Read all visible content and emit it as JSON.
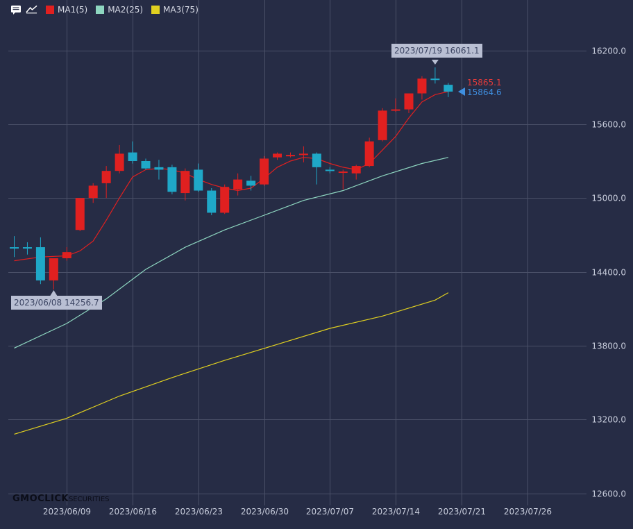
{
  "legend": {
    "menu_icon": "chat-bubble-icon",
    "draw_icon": "drawing-tool-icon",
    "items": [
      {
        "label": "MA1(5)",
        "color": "#e02020"
      },
      {
        "label": "MA2(25)",
        "color": "#8ed6c0"
      },
      {
        "label": "MA3(75)",
        "color": "#e0d020"
      }
    ]
  },
  "callouts": {
    "high": "2023/07/19 16061.1",
    "low": "2023/06/08 14256.7"
  },
  "last_price": {
    "ma": "15865.1",
    "close": "15864.6"
  },
  "logo": {
    "main": "GMOCLICK",
    "sub": "SECURITIES"
  },
  "colors": {
    "background": "#262c45",
    "grid": "#4a5068",
    "up": "#e02020",
    "down": "#1fa8c8",
    "ma1": "#e02020",
    "ma2": "#8ed6c0",
    "ma3": "#e0d020",
    "axis_text": "#c9cedd"
  },
  "chart_data": {
    "type": "candlestick",
    "y_ticks": [
      12600.0,
      13200.0,
      13800.0,
      14400.0,
      15000.0,
      15600.0,
      16200.0
    ],
    "y_tick_labels": [
      "12600.0",
      "13200.0",
      "13800.0",
      "14400.0",
      "15000.0",
      "15600.0",
      "16200.0"
    ],
    "ylim": [
      12440,
      16560
    ],
    "x_ticks": [
      "2023/06/09",
      "2023/06/16",
      "2023/06/23",
      "2023/06/30",
      "2023/07/07",
      "2023/07/14",
      "2023/07/21",
      "2023/07/26"
    ],
    "x_tick_slots": [
      4,
      9,
      14,
      19,
      24,
      29,
      34,
      39
    ],
    "candles": [
      {
        "slot": 0,
        "open": 14600,
        "high": 14690,
        "low": 14520,
        "close": 14590
      },
      {
        "slot": 1,
        "open": 14600,
        "high": 14640,
        "low": 14540,
        "close": 14590
      },
      {
        "slot": 2,
        "open": 14600,
        "high": 14680,
        "low": 14300,
        "close": 14330
      },
      {
        "slot": 3,
        "open": 14330,
        "high": 14510,
        "low": 14256.7,
        "close": 14510
      },
      {
        "slot": 4,
        "open": 14510,
        "high": 14600,
        "low": 14490,
        "close": 14560
      },
      {
        "slot": 5,
        "open": 14740,
        "high": 15000,
        "low": 14730,
        "close": 15000
      },
      {
        "slot": 6,
        "open": 15000,
        "high": 15120,
        "low": 14960,
        "close": 15100
      },
      {
        "slot": 7,
        "open": 15120,
        "high": 15260,
        "low": 15000,
        "close": 15220
      },
      {
        "slot": 8,
        "open": 15220,
        "high": 15430,
        "low": 15200,
        "close": 15360
      },
      {
        "slot": 9,
        "open": 15370,
        "high": 15460,
        "low": 15280,
        "close": 15300
      },
      {
        "slot": 10,
        "open": 15300,
        "high": 15320,
        "low": 15230,
        "close": 15240
      },
      {
        "slot": 11,
        "open": 15250,
        "high": 15310,
        "low": 15150,
        "close": 15230
      },
      {
        "slot": 12,
        "open": 15250,
        "high": 15270,
        "low": 15030,
        "close": 15050
      },
      {
        "slot": 13,
        "open": 15040,
        "high": 15240,
        "low": 14980,
        "close": 15220
      },
      {
        "slot": 14,
        "open": 15230,
        "high": 15280,
        "low": 15050,
        "close": 15060
      },
      {
        "slot": 15,
        "open": 15060,
        "high": 15080,
        "low": 14860,
        "close": 14880
      },
      {
        "slot": 16,
        "open": 14880,
        "high": 15110,
        "low": 14870,
        "close": 15090
      },
      {
        "slot": 17,
        "open": 15070,
        "high": 15200,
        "low": 15020,
        "close": 15150
      },
      {
        "slot": 18,
        "open": 15140,
        "high": 15180,
        "low": 15060,
        "close": 15100
      },
      {
        "slot": 19,
        "open": 15110,
        "high": 15340,
        "low": 15100,
        "close": 15320
      },
      {
        "slot": 20,
        "open": 15330,
        "high": 15370,
        "low": 15310,
        "close": 15360
      },
      {
        "slot": 21,
        "open": 15350,
        "high": 15370,
        "low": 15330,
        "close": 15350
      },
      {
        "slot": 22,
        "open": 15350,
        "high": 15420,
        "low": 15290,
        "close": 15360
      },
      {
        "slot": 23,
        "open": 15360,
        "high": 15370,
        "low": 15110,
        "close": 15250
      },
      {
        "slot": 24,
        "open": 15230,
        "high": 15250,
        "low": 15200,
        "close": 15220
      },
      {
        "slot": 25,
        "open": 15210,
        "high": 15230,
        "low": 15070,
        "close": 15215
      },
      {
        "slot": 26,
        "open": 15200,
        "high": 15270,
        "low": 15150,
        "close": 15260
      },
      {
        "slot": 27,
        "open": 15260,
        "high": 15490,
        "low": 15250,
        "close": 15460
      },
      {
        "slot": 28,
        "open": 15470,
        "high": 15730,
        "low": 15460,
        "close": 15710
      },
      {
        "slot": 29,
        "open": 15710,
        "high": 15810,
        "low": 15700,
        "close": 15720
      },
      {
        "slot": 30,
        "open": 15720,
        "high": 15850,
        "low": 15690,
        "close": 15850
      },
      {
        "slot": 31,
        "open": 15850,
        "high": 15990,
        "low": 15800,
        "close": 15970
      },
      {
        "slot": 32,
        "open": 15970,
        "high": 16061.1,
        "low": 15930,
        "close": 15960
      },
      {
        "slot": 33,
        "open": 15920,
        "high": 15935,
        "low": 15820,
        "close": 15864.6
      }
    ],
    "series": [
      {
        "name": "MA1(5)",
        "color": "#e02020",
        "points": [
          [
            0,
            14490
          ],
          [
            2,
            14520
          ],
          [
            4,
            14530
          ],
          [
            5,
            14570
          ],
          [
            6,
            14650
          ],
          [
            7,
            14820
          ],
          [
            8,
            15000
          ],
          [
            9,
            15170
          ],
          [
            10,
            15230
          ],
          [
            11,
            15240
          ],
          [
            12,
            15230
          ],
          [
            13,
            15200
          ],
          [
            14,
            15150
          ],
          [
            15,
            15110
          ],
          [
            16,
            15080
          ],
          [
            17,
            15060
          ],
          [
            18,
            15080
          ],
          [
            19,
            15160
          ],
          [
            20,
            15250
          ],
          [
            21,
            15300
          ],
          [
            22,
            15330
          ],
          [
            23,
            15320
          ],
          [
            24,
            15280
          ],
          [
            25,
            15250
          ],
          [
            26,
            15230
          ],
          [
            27,
            15280
          ],
          [
            28,
            15390
          ],
          [
            29,
            15500
          ],
          [
            30,
            15650
          ],
          [
            31,
            15780
          ],
          [
            32,
            15840
          ],
          [
            33,
            15865.1
          ]
        ]
      },
      {
        "name": "MA2(25)",
        "color": "#8ed6c0",
        "points": [
          [
            0,
            13780
          ],
          [
            4,
            13980
          ],
          [
            7,
            14180
          ],
          [
            10,
            14420
          ],
          [
            13,
            14600
          ],
          [
            16,
            14740
          ],
          [
            19,
            14860
          ],
          [
            22,
            14980
          ],
          [
            25,
            15060
          ],
          [
            28,
            15180
          ],
          [
            31,
            15280
          ],
          [
            33,
            15330
          ]
        ]
      },
      {
        "name": "MA3(75)",
        "color": "#e0d020",
        "points": [
          [
            0,
            13080
          ],
          [
            4,
            13210
          ],
          [
            8,
            13390
          ],
          [
            12,
            13540
          ],
          [
            16,
            13680
          ],
          [
            20,
            13810
          ],
          [
            24,
            13940
          ],
          [
            28,
            14040
          ],
          [
            32,
            14170
          ],
          [
            33,
            14230
          ]
        ]
      }
    ]
  }
}
